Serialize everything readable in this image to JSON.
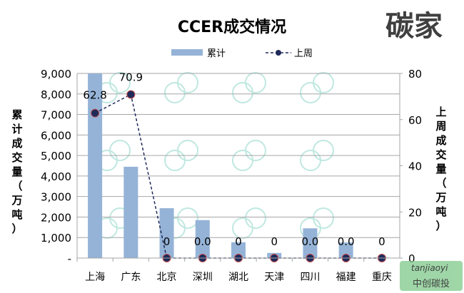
{
  "chart_data": {
    "type": "bar+line",
    "title": "CCER成交情况",
    "categories": [
      "上海",
      "广东",
      "北京",
      "深圳",
      "湖北",
      "天津",
      "四川",
      "福建",
      "重庆"
    ],
    "series": [
      {
        "name": "累计",
        "type": "bar",
        "axis": "left",
        "color": "#95b3d7",
        "values": [
          9000,
          4450,
          2430,
          1850,
          770,
          250,
          1450,
          760,
          30
        ]
      },
      {
        "name": "上周",
        "type": "line",
        "axis": "right",
        "color": "#1f2a5a",
        "style": "dashed",
        "values": [
          62.8,
          70.9,
          0,
          0,
          0,
          0,
          0,
          0,
          0
        ],
        "data_labels": [
          "62.8",
          "70.9",
          "0",
          "0.0",
          "0",
          "0",
          "0.0",
          "0.0",
          "0"
        ]
      }
    ],
    "ylabel": "累计成交量（万吨）",
    "ylabel_right": "上周成交量（万吨）",
    "ylim": [
      0,
      9000
    ],
    "ylim_right": [
      0,
      80
    ],
    "yticks": [
      "-",
      "1,000",
      "2,000",
      "3,000",
      "4,000",
      "5,000",
      "6,000",
      "7,000",
      "8,000",
      "9,000"
    ],
    "yticks_right": [
      "0",
      "20",
      "40",
      "60",
      "80"
    ],
    "grid": true,
    "legend": "top-center"
  },
  "watermark": {
    "logo": "碳家",
    "site": "tanjiaoyi",
    "source": "中创碳投"
  }
}
